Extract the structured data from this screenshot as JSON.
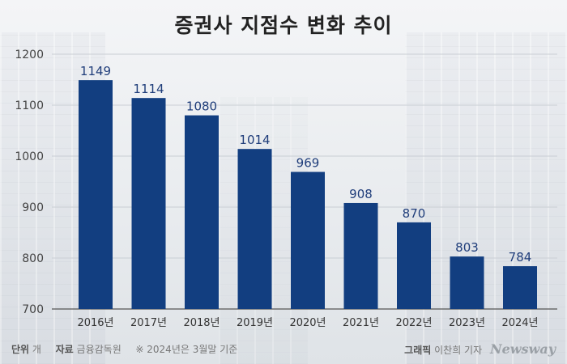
{
  "title": "증권사 지점수 변화 추이",
  "chart_data": {
    "type": "bar",
    "categories": [
      "2016년",
      "2017년",
      "2018년",
      "2019년",
      "2020년",
      "2021년",
      "2022년",
      "2023년",
      "2024년"
    ],
    "values": [
      1149,
      1114,
      1080,
      1014,
      969,
      908,
      870,
      803,
      784
    ],
    "ylim": [
      700,
      1200
    ],
    "yticks": [
      700,
      800,
      900,
      1000,
      1100,
      1200
    ],
    "xlabel": "",
    "ylabel": "",
    "bar_color": "#123e80",
    "grid": true
  },
  "footer": {
    "unit_label": "단위",
    "unit_value": "개",
    "source_label": "자료",
    "source_value": "금융감독원",
    "note": "※ 2024년은 3월말 기준"
  },
  "credit": {
    "role": "그래픽",
    "author": "이찬희 기자",
    "brand": "Newsway"
  }
}
